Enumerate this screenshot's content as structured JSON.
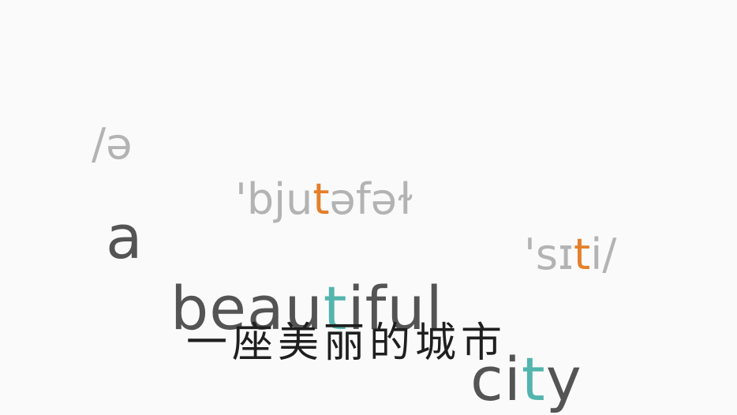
{
  "colors": {
    "background": "#fbfafa",
    "ipa_text": "#b3b3b3",
    "ipa_highlight": "#e67f2a",
    "english_text": "#545454",
    "english_highlight": "#53b5ad",
    "chinese_text": "#1f1f1f"
  },
  "ipa": {
    "word1": "/ə",
    "word2_a": "'bju",
    "word2_hl": "t",
    "word2_b": "əfəɫ",
    "word3_a": "'sɪ",
    "word3_hl": "t",
    "word3_b": "i/"
  },
  "english": {
    "word1": "a",
    "word2_a": "beau",
    "word2_hl": "t",
    "word2_b": "iful",
    "word3_a": "ci",
    "word3_hl": "t",
    "word3_b": "y"
  },
  "chinese": {
    "text": "一座美丽的城市"
  }
}
